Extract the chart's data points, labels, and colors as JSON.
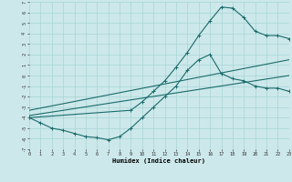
{
  "xlabel": "Humidex (Indice chaleur)",
  "bg_color": "#cce8ea",
  "grid_color": "#a8d4d6",
  "line_color": "#1a6b6b",
  "xlim": [
    0,
    23
  ],
  "ylim": [
    -7,
    7
  ],
  "line1_x": [
    0,
    1,
    2,
    3,
    4,
    5,
    6,
    7,
    8,
    9,
    10,
    11,
    12,
    13,
    14,
    15,
    16,
    17,
    18,
    19,
    20,
    21,
    22,
    23
  ],
  "line1_y": [
    -4,
    -4.5,
    -5.0,
    -5.2,
    -5.5,
    -5.8,
    -5.9,
    -6.1,
    -5.8,
    -5.0,
    -4.0,
    -3.0,
    -2.0,
    -1.0,
    0.5,
    1.5,
    2.0,
    0.2,
    -0.3,
    -0.5,
    -1.0,
    -1.2,
    -1.2,
    -1.5
  ],
  "line2_x": [
    0,
    9,
    10,
    11,
    12,
    13,
    14,
    15,
    16,
    17,
    18,
    19,
    20,
    21,
    22,
    23
  ],
  "line2_y": [
    -4,
    -3.3,
    -2.5,
    -1.5,
    -0.5,
    0.8,
    2.2,
    3.8,
    5.2,
    6.5,
    6.4,
    5.5,
    4.2,
    3.8,
    3.8,
    3.5
  ],
  "line3_x": [
    0,
    23
  ],
  "line3_y": [
    -3.8,
    0.0
  ],
  "line4_x": [
    0,
    23
  ],
  "line4_y": [
    -3.3,
    1.5
  ]
}
